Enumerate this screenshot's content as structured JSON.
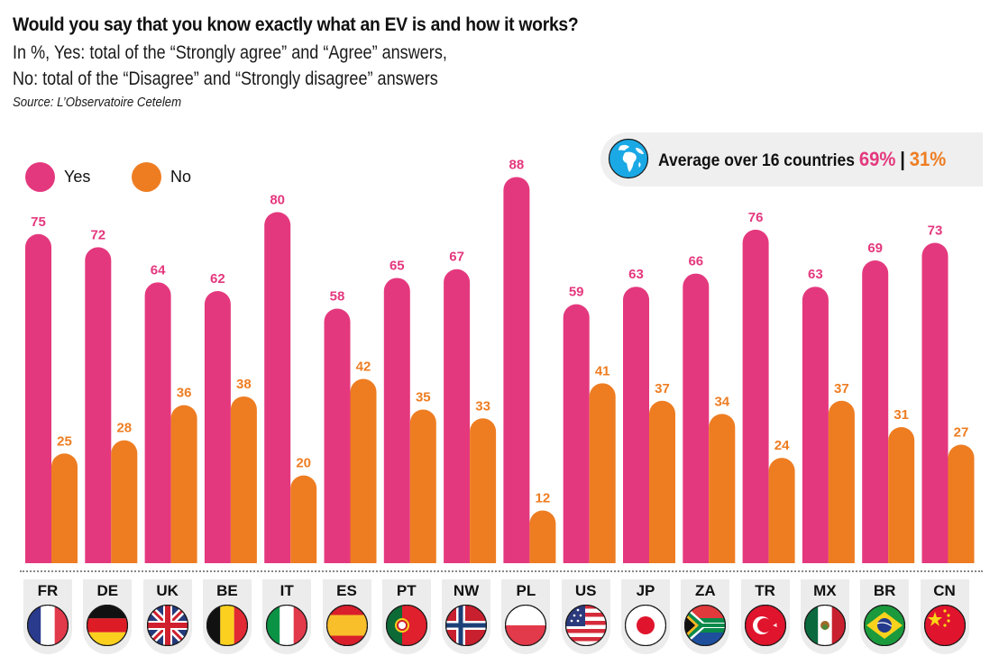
{
  "header": {
    "title": "Would you say that you know exactly what an EV is and how it works?",
    "subtitle_line1": "In %, Yes: total of the “Strongly agree” and “Agree” answers,",
    "subtitle_line2": "No: total of the “Disagree” and “Strongly disagree” answers",
    "source": "Source: L’Observatoire Cetelem"
  },
  "average": {
    "icon": "globe-icon",
    "label": "Average over 16 countries",
    "yes": "69%",
    "separator": "|",
    "no": "31%"
  },
  "legend": [
    {
      "label": "Yes",
      "color": "#e4387e"
    },
    {
      "label": "No",
      "color": "#ee7d22"
    }
  ],
  "colors": {
    "yes": "#e4387e",
    "no": "#ee7d22",
    "tab": "#ececec"
  },
  "chart_data": {
    "type": "bar",
    "title": "Would you say that you know exactly what an EV is and how it works?",
    "xlabel": "",
    "ylabel": "%",
    "ylim": [
      0,
      100
    ],
    "grid": false,
    "legend_position": "top-left",
    "categories": [
      "FR",
      "DE",
      "UK",
      "BE",
      "IT",
      "ES",
      "PT",
      "NW",
      "PL",
      "US",
      "JP",
      "ZA",
      "TR",
      "MX",
      "BR",
      "CN"
    ],
    "series": [
      {
        "name": "Yes",
        "color": "#e4387e",
        "values": [
          75,
          72,
          64,
          62,
          80,
          58,
          65,
          67,
          88,
          59,
          63,
          66,
          76,
          63,
          69,
          73
        ]
      },
      {
        "name": "No",
        "color": "#ee7d22",
        "values": [
          25,
          28,
          36,
          38,
          20,
          42,
          35,
          33,
          12,
          41,
          37,
          34,
          24,
          37,
          31,
          27
        ]
      }
    ],
    "average": {
      "Yes": 69,
      "No": 31,
      "countries": 16
    }
  },
  "countries": [
    {
      "code": "FR",
      "flag": "france-flag"
    },
    {
      "code": "DE",
      "flag": "germany-flag"
    },
    {
      "code": "UK",
      "flag": "uk-flag"
    },
    {
      "code": "BE",
      "flag": "belgium-flag"
    },
    {
      "code": "IT",
      "flag": "italy-flag"
    },
    {
      "code": "ES",
      "flag": "spain-flag"
    },
    {
      "code": "PT",
      "flag": "portugal-flag"
    },
    {
      "code": "NW",
      "flag": "norway-flag"
    },
    {
      "code": "PL",
      "flag": "poland-flag"
    },
    {
      "code": "US",
      "flag": "usa-flag"
    },
    {
      "code": "JP",
      "flag": "japan-flag"
    },
    {
      "code": "ZA",
      "flag": "south-africa-flag"
    },
    {
      "code": "TR",
      "flag": "turkey-flag"
    },
    {
      "code": "MX",
      "flag": "mexico-flag"
    },
    {
      "code": "BR",
      "flag": "brazil-flag"
    },
    {
      "code": "CN",
      "flag": "china-flag"
    }
  ]
}
